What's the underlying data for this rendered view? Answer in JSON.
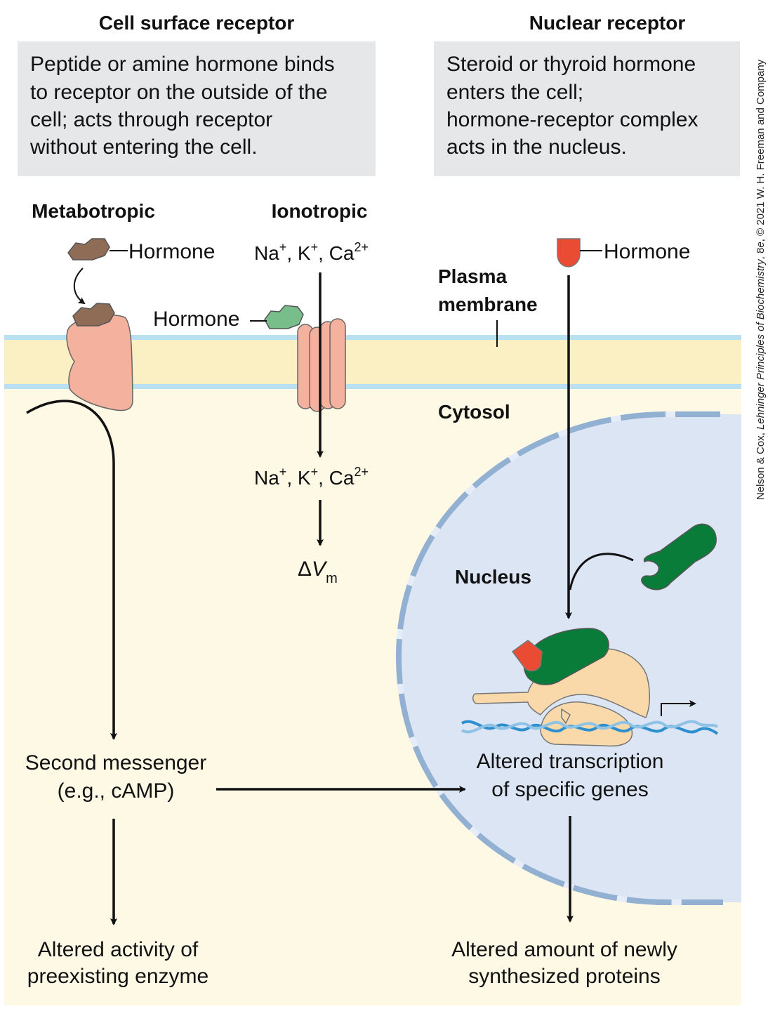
{
  "colors": {
    "cytosol": "#fdf9e5",
    "membrane_core": "#fbf0c4",
    "membrane_edge": "#b9e0f0",
    "info_box": "#e6e7e9",
    "nucleus": "#dbe5f4",
    "nuclear_envelope": "#92b0d1",
    "receptor": "#f4b19d",
    "metabotropic_hormone": "#8e6c55",
    "ionotropic_hormone": "#78be8b",
    "steroid_hormone": "#e94b33",
    "nuclear_receptor": "#0a7c3a",
    "transcription_machinery": "#f9d9aa",
    "dna": "#2e8fce"
  },
  "headers": {
    "cell_surface": "Cell surface receptor",
    "nuclear": "Nuclear receptor"
  },
  "boxes": {
    "cell_surface": [
      "Peptide or amine hormone binds",
      "to receptor on the outside of the",
      "cell; acts through receptor",
      "without entering the cell."
    ],
    "nuclear": [
      "Steroid or thyroid  hormone",
      "enters the cell;",
      "hormone-receptor complex",
      "acts in the nucleus."
    ]
  },
  "labels": {
    "metabotropic": "Metabotropic",
    "ionotropic": "Ionotropic",
    "hormone_metabotropic": "Hormone",
    "hormone_ionotropic": "Hormone",
    "hormone_nuclear": "Hormone",
    "plasma_membrane_1": "Plasma",
    "plasma_membrane_2": "membrane",
    "cytosol": "Cytosol",
    "nucleus": "Nucleus",
    "ions_out": {
      "na": "Na",
      "k": "K",
      "ca": "Ca",
      "plus": "+",
      "ca_charge": "2+"
    },
    "ions_in": {
      "na": "Na",
      "k": "K",
      "ca": "Ca",
      "plus": "+",
      "ca_charge": "2+"
    },
    "delta_vm": {
      "delta": "Δ",
      "v": "V",
      "sub": "m"
    },
    "second_messenger_1": "Second messenger",
    "second_messenger_2": "(e.g., cAMP)",
    "altered_transcription_1": "Altered transcription",
    "altered_transcription_2": "of specific genes",
    "altered_activity_1": "Altered activity of",
    "altered_activity_2": "preexisting enzyme",
    "altered_amount_1": "Altered amount of newly",
    "altered_amount_2": "synthesized proteins"
  },
  "credit": {
    "authors": "Nelson & Cox, ",
    "book": "Lehninger Principles of Biochemistry",
    "edition_prefix": ", 8",
    "edition_e": "e",
    "rest": ", © 2021 W. H. Freeman and Company"
  }
}
